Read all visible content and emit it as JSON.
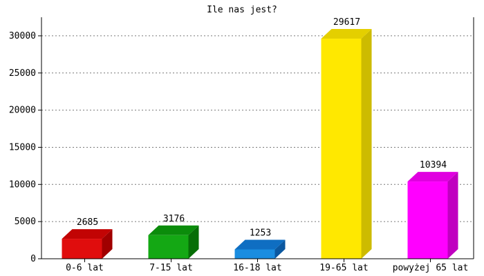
{
  "chart_data": {
    "type": "bar",
    "title": "Ile nas jest?",
    "xlabel": "",
    "ylabel": "",
    "categories": [
      "0-6 lat",
      "7-15 lat",
      "16-18 lat",
      "19-65 lat",
      "powyżej 65 lat"
    ],
    "values": [
      2685,
      3176,
      1253,
      29617,
      10394
    ],
    "data_labels": [
      "2685",
      "3176",
      "1253",
      "29617",
      "10394"
    ],
    "ylim": [
      0,
      32500
    ],
    "yticks": [
      0,
      5000,
      10000,
      15000,
      20000,
      25000,
      30000
    ],
    "ytick_labels": [
      "0",
      "5000",
      "10000",
      "15000",
      "20000",
      "25000",
      "30000"
    ],
    "grid": true,
    "legend": "none",
    "style": "3d-bars",
    "colors": [
      {
        "front": "#e00d0d",
        "top": "#c20404",
        "side": "#a00000"
      },
      {
        "front": "#14a814",
        "top": "#0b8c0b",
        "side": "#066e06"
      },
      {
        "front": "#1a8de0",
        "top": "#0f6ec2",
        "side": "#0b58a0"
      },
      {
        "front": "#ffe800",
        "top": "#e4cf00",
        "side": "#cdbb00"
      },
      {
        "front": "#ff00ff",
        "top": "#e000e0",
        "side": "#c000c0"
      }
    ]
  }
}
